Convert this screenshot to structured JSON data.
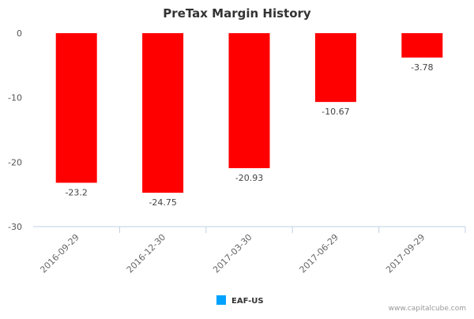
{
  "chart_data": {
    "type": "bar",
    "title": "PreTax Margin History",
    "categories": [
      "2016-09-29",
      "2016-12-30",
      "2017-03-30",
      "2017-06-29",
      "2017-09-29"
    ],
    "series": [
      {
        "name": "EAF-US",
        "values": [
          -23.2,
          -24.75,
          -20.93,
          -10.67,
          -3.78
        ],
        "data_labels": [
          "-23.2",
          "-24.75",
          "-20.93",
          "-10.67",
          "-3.78"
        ],
        "bar_color": "#ff0000",
        "legend_color": "#00a2ff"
      }
    ],
    "yticks": [
      0,
      -10,
      -20,
      -30
    ],
    "ylim": [
      -30,
      0
    ],
    "xlabel": "",
    "ylabel": "",
    "grid": false,
    "legend_position": "bottom-center"
  },
  "credit": "www.capitalcube.com",
  "colors": {
    "axis": "#c0d0e0",
    "background": "#ffffff"
  }
}
